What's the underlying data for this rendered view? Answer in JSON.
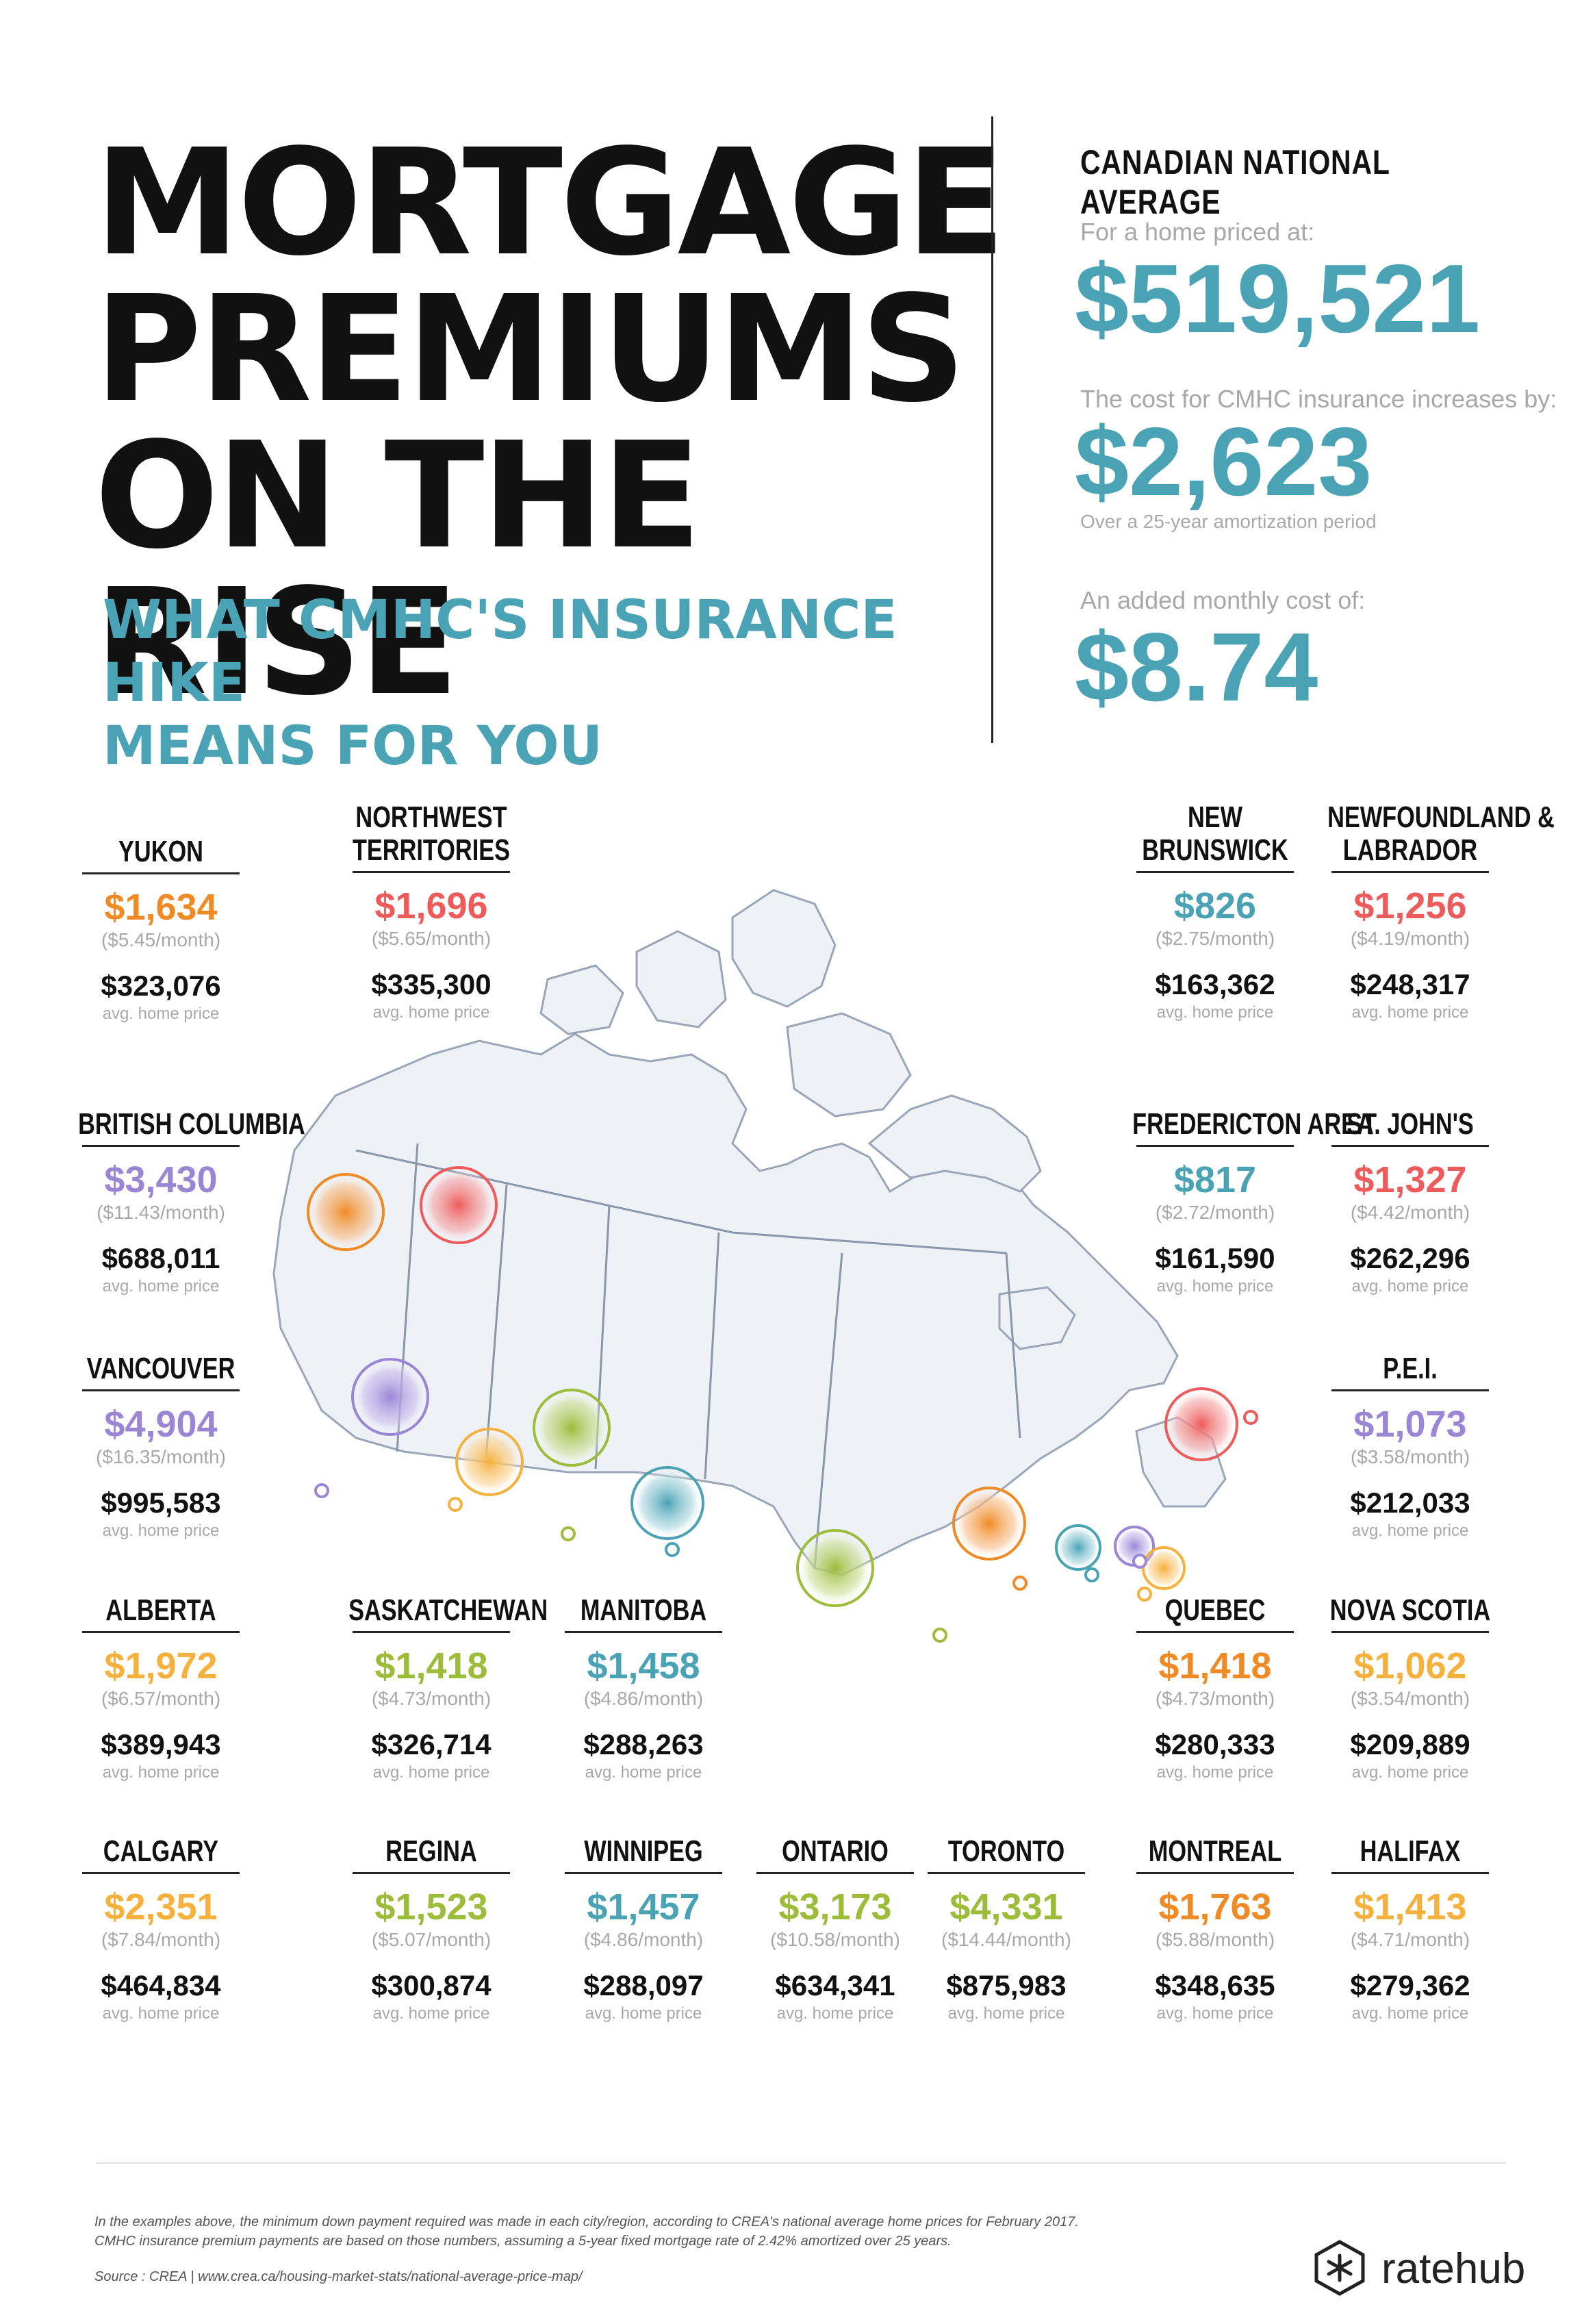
{
  "header": {
    "title_lines": [
      "MORTGAGE",
      "PREMIUMS",
      "ON THE RISE"
    ],
    "subtitle_lines": [
      "WHAT CMHC'S INSURANCE HIKE",
      "MEANS FOR YOU"
    ]
  },
  "national": {
    "heading": "CANADIAN NATIONAL AVERAGE",
    "price_label": "For a home priced at:",
    "price": "$519,521",
    "cost_label": "The cost for CMHC insurance increases by:",
    "cost": "$2,623",
    "cost_note": "Over a 25-year amortization period",
    "monthly_label": "An added monthly cost of:",
    "monthly": "$8.74"
  },
  "colors": {
    "orange": "#f08a24",
    "red": "#ee5b5b",
    "purple": "#9b86d6",
    "teal": "#4aa3b5",
    "green": "#9cbc3a",
    "yellow": "#f6b13c"
  },
  "regions": [
    {
      "name_lines": [
        "YUKON"
      ],
      "cost": "$1,634",
      "monthly": "($5.45/month)",
      "price": "$323,076",
      "price_note": "avg. home price",
      "color": "#f08a24"
    },
    {
      "name_lines": [
        "NORTHWEST",
        "TERRITORIES"
      ],
      "cost": "$1,696",
      "monthly": "($5.65/month)",
      "price": "$335,300",
      "price_note": "avg. home price",
      "color": "#ee5b5b"
    },
    {
      "name_lines": [
        "NEW",
        "BRUNSWICK"
      ],
      "cost": "$826",
      "monthly": "($2.75/month)",
      "price": "$163,362",
      "price_note": "avg. home price",
      "color": "#4aa3b5"
    },
    {
      "name_lines": [
        "NEWFOUNDLAND &",
        "LABRADOR"
      ],
      "cost": "$1,256",
      "monthly": "($4.19/month)",
      "price": "$248,317",
      "price_note": "avg. home price",
      "color": "#ee5b5b"
    },
    {
      "name_lines": [
        "BRITISH COLUMBIA"
      ],
      "cost": "$3,430",
      "monthly": "($11.43/month)",
      "price": "$688,011",
      "price_note": "avg. home price",
      "color": "#9b86d6"
    },
    {
      "name_lines": [
        "FREDERICTON AREA"
      ],
      "cost": "$817",
      "monthly": "($2.72/month)",
      "price": "$161,590",
      "price_note": "avg. home price",
      "color": "#4aa3b5"
    },
    {
      "name_lines": [
        "ST. JOHN'S"
      ],
      "cost": "$1,327",
      "monthly": "($4.42/month)",
      "price": "$262,296",
      "price_note": "avg. home price",
      "color": "#ee5b5b"
    },
    {
      "name_lines": [
        "VANCOUVER"
      ],
      "cost": "$4,904",
      "monthly": "($16.35/month)",
      "price": "$995,583",
      "price_note": "avg. home price",
      "color": "#9b86d6"
    },
    {
      "name_lines": [
        "P.E.I."
      ],
      "cost": "$1,073",
      "monthly": "($3.58/month)",
      "price": "$212,033",
      "price_note": "avg. home price",
      "color": "#9b86d6"
    },
    {
      "name_lines": [
        "ALBERTA"
      ],
      "cost": "$1,972",
      "monthly": "($6.57/month)",
      "price": "$389,943",
      "price_note": "avg. home price",
      "color": "#f6b13c"
    },
    {
      "name_lines": [
        "SASKATCHEWAN"
      ],
      "cost": "$1,418",
      "monthly": "($4.73/month)",
      "price": "$326,714",
      "price_note": "avg. home price",
      "color": "#9cbc3a"
    },
    {
      "name_lines": [
        "MANITOBA"
      ],
      "cost": "$1,458",
      "monthly": "($4.86/month)",
      "price": "$288,263",
      "price_note": "avg. home price",
      "color": "#4aa3b5"
    },
    {
      "name_lines": [
        "QUEBEC"
      ],
      "cost": "$1,418",
      "monthly": "($4.73/month)",
      "price": "$280,333",
      "price_note": "avg. home price",
      "color": "#f08a24"
    },
    {
      "name_lines": [
        "NOVA SCOTIA"
      ],
      "cost": "$1,062",
      "monthly": "($3.54/month)",
      "price": "$209,889",
      "price_note": "avg. home price",
      "color": "#f6b13c"
    },
    {
      "name_lines": [
        "CALGARY"
      ],
      "cost": "$2,351",
      "monthly": "($7.84/month)",
      "price": "$464,834",
      "price_note": "avg. home price",
      "color": "#f6b13c"
    },
    {
      "name_lines": [
        "REGINA"
      ],
      "cost": "$1,523",
      "monthly": "($5.07/month)",
      "price": "$300,874",
      "price_note": "avg. home price",
      "color": "#9cbc3a"
    },
    {
      "name_lines": [
        "WINNIPEG"
      ],
      "cost": "$1,457",
      "monthly": "($4.86/month)",
      "price": "$288,097",
      "price_note": "avg. home price",
      "color": "#4aa3b5"
    },
    {
      "name_lines": [
        "ONTARIO"
      ],
      "cost": "$3,173",
      "monthly": "($10.58/month)",
      "price": "$634,341",
      "price_note": "avg. home price",
      "color": "#9cbc3a"
    },
    {
      "name_lines": [
        "TORONTO"
      ],
      "cost": "$4,331",
      "monthly": "($14.44/month)",
      "price": "$875,983",
      "price_note": "avg. home price",
      "color": "#9cbc3a"
    },
    {
      "name_lines": [
        "MONTREAL"
      ],
      "cost": "$1,763",
      "monthly": "($5.88/month)",
      "price": "$348,635",
      "price_note": "avg. home price",
      "color": "#f08a24"
    },
    {
      "name_lines": [
        "HALIFAX"
      ],
      "cost": "$1,413",
      "monthly": "($4.71/month)",
      "price": "$279,362",
      "price_note": "avg. home price",
      "color": "#f6b13c"
    }
  ],
  "footer": {
    "note_1": "In the examples above, the minimum down payment required was made in each city/region, according to CREA's national average home prices for February 2017.",
    "note_2": "CMHC insurance premium payments are based on those numbers, assuming a 5-year fixed mortgage rate of 2.42% amortized over 25 years.",
    "source": "Source : CREA  |  www.crea.ca/housing-market-stats/national-average-price-map/",
    "brand": "ratehub",
    "brand_icon": "snowflake-hexagon-icon"
  }
}
